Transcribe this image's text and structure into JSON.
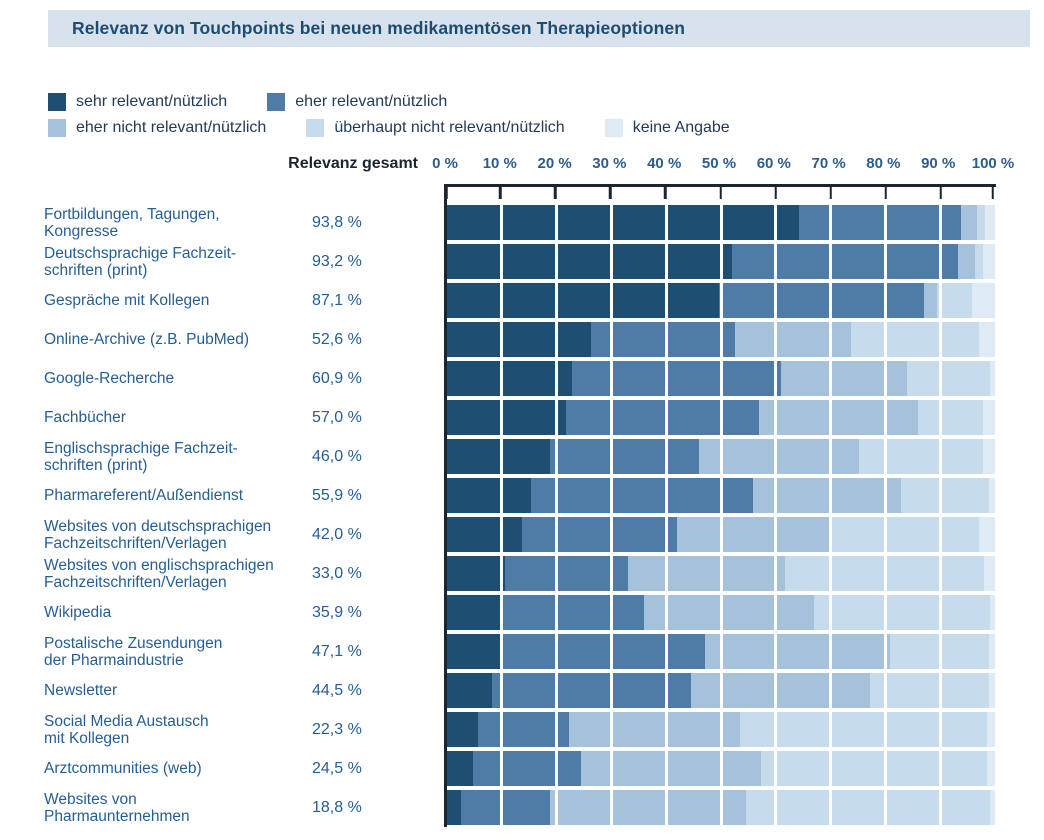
{
  "title": "Relevanz von Touchpoints bei neuen medikamentösen Therapieoptionen",
  "colors": {
    "title_bg": "#d8e2ec",
    "title_text": "#1d4c70",
    "row_text": "#265e93",
    "tick_text": "#2b5e8e",
    "axis_dark": "#1b2530",
    "sehr_relevant": "#1e4e72",
    "eher_relevant": "#4e7ca6",
    "eher_nicht_relevant": "#a6c2db",
    "ueberhaupt_nicht_relevant": "#c6dbec",
    "keine_angabe": "#deebf4"
  },
  "axis": {
    "header": "Relevanz gesamt",
    "ticks": [
      "0 %",
      "10 %",
      "20 %",
      "30 %",
      "40 %",
      "50 %",
      "60 %",
      "70 %",
      "80 %",
      "90 %",
      "100 %"
    ],
    "min": 0,
    "max": 100
  },
  "chart_data": {
    "type": "bar",
    "stacked": true,
    "orientation": "horizontal",
    "unit": "%",
    "title": "Relevanz von Touchpoints bei neuen medikamentösen Therapieoptionen",
    "xlabel": "",
    "ylabel": "Relevanz gesamt",
    "xlim": [
      0,
      100
    ],
    "grid": true,
    "legend_position": "top",
    "categories": [
      "Fortbildungen, Tagungen, Kongresse",
      "Deutschsprachige Fachzeitschriften (print)",
      "Gespräche mit Kollegen",
      "Online-Archive (z.B. PubMed)",
      "Google-Recherche",
      "Fachbücher",
      "Englischsprachige Fachzeitschriften (print)",
      "Pharmareferent/Außendienst",
      "Websites von deutschsprachigen Fachzeitschriften/Verlagen",
      "Websites von englischsprachigen Fachzeitschriften/Verlagen",
      "Wikipedia",
      "Postalische Zusendungen der Pharmaindustrie",
      "Newsletter",
      "Social Media Austausch mit Kollegen",
      "Arztcommunities (web)",
      "Websites von Pharmaunternehmen"
    ],
    "category_lines": [
      [
        "Fortbildungen, Tagungen,",
        "Kongresse"
      ],
      [
        "Deutschsprachige Fachzeit-",
        "schriften (print)"
      ],
      [
        "Gespräche mit Kollegen"
      ],
      [
        "Online-Archive (z.B. PubMed)"
      ],
      [
        "Google-Recherche"
      ],
      [
        "Fachbücher"
      ],
      [
        "Englischsprachige Fachzeit-",
        "schriften (print)"
      ],
      [
        "Pharmareferent/Außendienst"
      ],
      [
        "Websites von deutschsprachigen",
        "Fachzeitschriften/Verlagen"
      ],
      [
        "Websites von englischsprachigen",
        "Fachzeitschriften/Verlagen"
      ],
      [
        "Wikipedia"
      ],
      [
        "Postalische Zusendungen",
        "der Pharmaindustrie"
      ],
      [
        "Newsletter"
      ],
      [
        "Social Media Austausch",
        "mit Kollegen"
      ],
      [
        "Arztcommunities (web)"
      ],
      [
        "Websites von",
        "Pharmaunternehmen"
      ]
    ],
    "relevanz_gesamt_values": [
      93.8,
      93.2,
      87.1,
      52.6,
      60.9,
      57.0,
      46.0,
      55.9,
      42.0,
      33.0,
      35.9,
      47.1,
      44.5,
      22.3,
      24.5,
      18.8
    ],
    "relevanz_gesamt_labels": [
      "93,8 %",
      "93,2 %",
      "87,1 %",
      "52,6 %",
      "60,9 %",
      "57,0 %",
      "46,0 %",
      "55,9 %",
      "42,0 %",
      "33,0 %",
      "35,9 %",
      "47,1 %",
      "44,5 %",
      "22,3 %",
      "24,5 %",
      "18,8 %"
    ],
    "series": [
      {
        "name": "sehr relevant/nützlich",
        "color": "#1e4e72",
        "values": [
          64.3,
          52.0,
          49.7,
          26.3,
          22.9,
          21.7,
          18.8,
          15.3,
          13.7,
          10.5,
          9.9,
          9.7,
          8.3,
          5.7,
          4.8,
          2.6
        ]
      },
      {
        "name": "eher relevant/nützlich",
        "color": "#4e7ca6",
        "values": [
          29.5,
          41.2,
          37.4,
          26.3,
          38.0,
          35.3,
          27.2,
          40.6,
          28.3,
          22.5,
          26.0,
          37.4,
          36.2,
          16.6,
          19.7,
          16.2
        ]
      },
      {
        "name": "eher nicht relevant/nützlich",
        "color": "#a6c2db",
        "values": [
          3.0,
          3.2,
          2.3,
          21.1,
          23.1,
          28.9,
          29.1,
          27.0,
          28.1,
          28.6,
          31.0,
          33.7,
          32.7,
          31.1,
          32.8,
          35.7
        ]
      },
      {
        "name": "überhaupt nicht relevant/nützlich",
        "color": "#c6dbec",
        "values": [
          1.3,
          1.5,
          6.5,
          23.4,
          15.1,
          11.9,
          22.7,
          16.0,
          27.0,
          36.4,
          32.2,
          18.1,
          21.7,
          45.1,
          41.2,
          44.6
        ]
      },
      {
        "name": "keine Angabe",
        "color": "#deebf4",
        "values": [
          1.9,
          2.1,
          4.1,
          2.9,
          0.9,
          2.2,
          2.2,
          1.1,
          2.9,
          2.0,
          0.9,
          1.1,
          1.1,
          1.5,
          1.5,
          0.9
        ]
      }
    ]
  }
}
